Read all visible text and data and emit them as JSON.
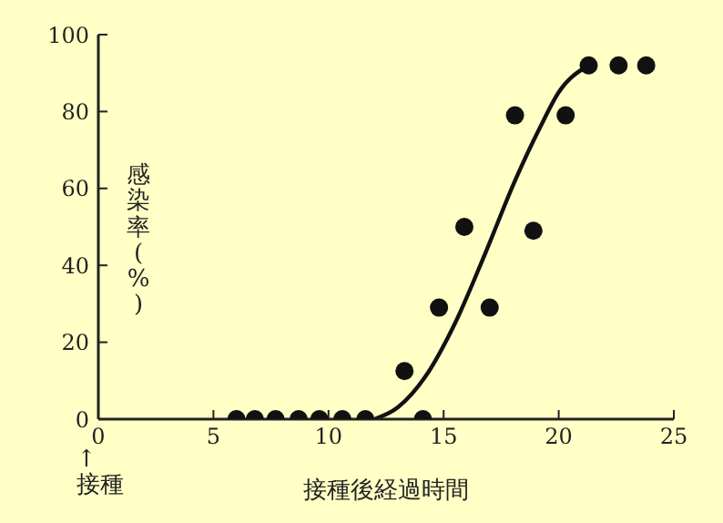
{
  "chart_data": {
    "type": "scatter",
    "xlabel": "接種後経過時間",
    "ylabel": "感染率(%)",
    "annotations": [
      "↑\n接種"
    ],
    "xlim": [
      0,
      25
    ],
    "xticks": [
      0,
      5,
      10,
      15,
      20,
      25
    ],
    "ylim": [
      0,
      100
    ],
    "yticks": [
      0,
      20,
      40,
      60,
      80,
      100
    ],
    "series": [
      {
        "color": "#111111",
        "marker": "circle",
        "x": [
          6,
          6.8,
          7.7,
          8.7,
          9.6,
          10.6,
          11.6,
          13.3,
          14.1,
          14.8,
          15.9,
          17,
          18.1,
          18.9,
          20.3,
          21.3,
          22.6,
          23.8
        ],
        "values": [
          0,
          0,
          0,
          0,
          0,
          0,
          0,
          12.5,
          0,
          29,
          50,
          29,
          79,
          49,
          79,
          92,
          92,
          92
        ]
      },
      {
        "type": "line",
        "color": "#111111",
        "x": [
          12,
          13,
          14.2,
          15.5,
          16.8,
          18.1,
          19.2,
          20,
          21.3
        ],
        "values": [
          0,
          3,
          11,
          25,
          43,
          62,
          76,
          85,
          92
        ]
      }
    ]
  }
}
